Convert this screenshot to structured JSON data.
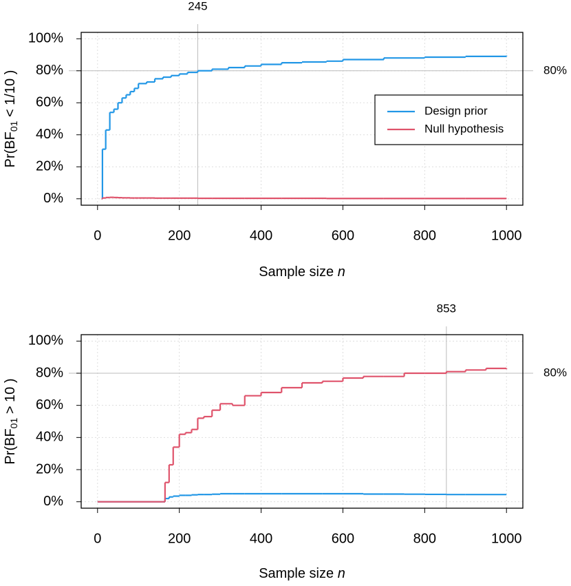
{
  "chart_data": [
    {
      "type": "step",
      "ylabel": {
        "prefix": "Pr(BF",
        "subscript": "01",
        "suffix": " < 1/10 )"
      },
      "xlabel": {
        "text": "Sample size ",
        "italic": "n"
      },
      "x": [
        10,
        12,
        20,
        30,
        40,
        50,
        60,
        70,
        80,
        90,
        100,
        120,
        140,
        160,
        180,
        200,
        220,
        245,
        280,
        320,
        360,
        400,
        450,
        500,
        560,
        600,
        700,
        800,
        900,
        1000
      ],
      "series": [
        {
          "name": "Design prior",
          "color": "#2297E6",
          "values": [
            0,
            31,
            43,
            54,
            56,
            60,
            63,
            65,
            67,
            69,
            72,
            73,
            75,
            76,
            77,
            78,
            79,
            80,
            81,
            82,
            83,
            84,
            85,
            85.5,
            86,
            87,
            88,
            88.5,
            89,
            89.5
          ]
        },
        {
          "name": "Null hypothesis",
          "color": "#DF536B",
          "values": [
            0,
            0.5,
            0.8,
            0.9,
            0.8,
            0.7,
            0.6,
            0.6,
            0.5,
            0.5,
            0.5,
            0.5,
            0.4,
            0.4,
            0.4,
            0.4,
            0.4,
            0.3,
            0.3,
            0.3,
            0.3,
            0.3,
            0.3,
            0.3,
            0.2,
            0.2,
            0.2,
            0.2,
            0.2,
            0.2
          ]
        }
      ],
      "xlim": [
        -40,
        1040
      ],
      "xticks": [
        0,
        200,
        400,
        600,
        800,
        1000
      ],
      "ylim": [
        -4,
        104
      ],
      "yticks": [
        {
          "value": 0,
          "label": "0%"
        },
        {
          "value": 20,
          "label": "20%"
        },
        {
          "value": 40,
          "label": "40%"
        },
        {
          "value": 60,
          "label": "60%"
        },
        {
          "value": 80,
          "label": "80%"
        },
        {
          "value": 100,
          "label": "100%"
        }
      ],
      "vline": {
        "value": 245,
        "label": "245"
      },
      "hline": {
        "value": 80,
        "label": "80%"
      },
      "grid": true,
      "legend": "right"
    },
    {
      "type": "step",
      "ylabel": {
        "prefix": "Pr(BF",
        "subscript": "01",
        "suffix": " > 10 )"
      },
      "xlabel": {
        "text": "Sample size ",
        "italic": "n"
      },
      "x": [
        0,
        160,
        165,
        175,
        185,
        200,
        215,
        230,
        245,
        260,
        280,
        300,
        330,
        360,
        400,
        450,
        500,
        550,
        600,
        650,
        700,
        750,
        800,
        853,
        900,
        950,
        1000
      ],
      "series": [
        {
          "color": "#2297E6",
          "values": [
            0,
            0,
            2,
            3,
            3.5,
            4,
            4,
            4.3,
            4.5,
            4.5,
            4.7,
            5,
            5,
            5,
            5,
            5,
            5,
            5,
            5,
            4.8,
            4.8,
            4.7,
            4.6,
            4.5,
            4.5,
            4.5,
            4.5
          ]
        },
        {
          "color": "#DF536B",
          "values": [
            0,
            0,
            12,
            23,
            34,
            42,
            43,
            45,
            52,
            53,
            57,
            61,
            60,
            66,
            68,
            71,
            74,
            75,
            77,
            78,
            78,
            80,
            80,
            81,
            82,
            83,
            82.5
          ]
        }
      ],
      "xlim": [
        -40,
        1040
      ],
      "xticks": [
        0,
        200,
        400,
        600,
        800,
        1000
      ],
      "ylim": [
        -4,
        104
      ],
      "yticks": [
        {
          "value": 0,
          "label": "0%"
        },
        {
          "value": 20,
          "label": "20%"
        },
        {
          "value": 40,
          "label": "40%"
        },
        {
          "value": 60,
          "label": "60%"
        },
        {
          "value": 80,
          "label": "80%"
        },
        {
          "value": 100,
          "label": "100%"
        }
      ],
      "vline": {
        "value": 853,
        "label": "853"
      },
      "hline": {
        "value": 80,
        "label": "80%"
      },
      "grid": true
    }
  ]
}
